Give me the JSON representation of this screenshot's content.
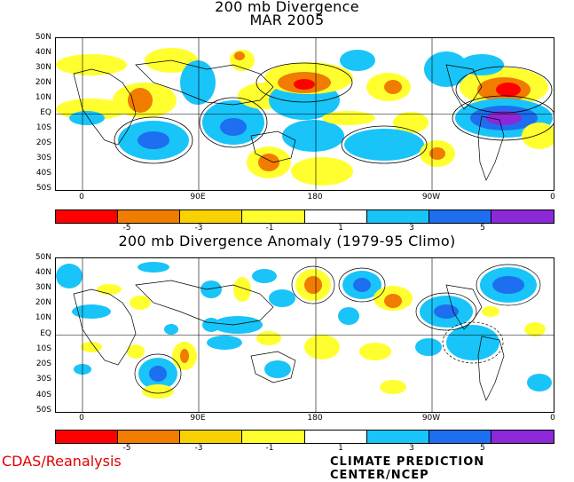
{
  "top_panel": {
    "title_line1": "200 mb Divergence",
    "title_line2": "MAR 2005",
    "lat_labels": [
      "50N",
      "40N",
      "30N",
      "20N",
      "10N",
      "EQ",
      "10S",
      "20S",
      "30S",
      "40S",
      "50S"
    ],
    "lon_labels": [
      "0",
      "90E",
      "180",
      "90W",
      "0"
    ]
  },
  "bottom_panel": {
    "title": "200 mb Divergence Anomaly (1979-95 Climo)",
    "lat_labels": [
      "50N",
      "40N",
      "30N",
      "20N",
      "10N",
      "EQ",
      "10S",
      "20S",
      "30S",
      "40S",
      "50S"
    ],
    "lon_labels": [
      "0",
      "90E",
      "180",
      "90W",
      "0"
    ]
  },
  "colorbar": {
    "colors": [
      "#ff0000",
      "#f07c00",
      "#fad100",
      "#ffff30",
      "#ffffff",
      "#18c4f8",
      "#1e6ef0",
      "#8c28d8"
    ],
    "labels": [
      "-5",
      "-3",
      "-1",
      "1",
      "3",
      "5"
    ]
  },
  "colors": {
    "positive_anomaly_shade": "#18c4f8",
    "negative_anomaly_shade": "#ffff30"
  },
  "footer": {
    "left": "CDAS/Reanalysis",
    "right": "CLIMATE PREDICTION CENTER/NCEP"
  }
}
